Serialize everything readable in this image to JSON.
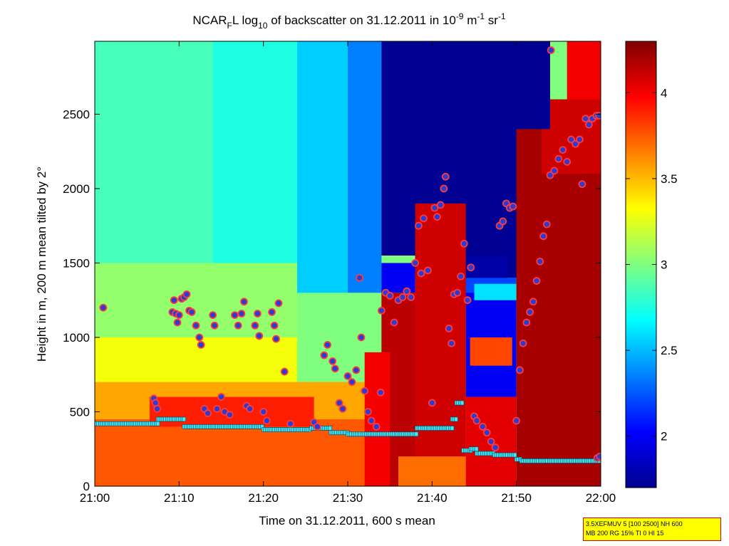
{
  "chart_data": {
    "type": "heatmap",
    "title": {
      "prefix": "NCAR",
      "prefix_sub": "F",
      "mid1": "L log",
      "log_sub": "10",
      "mid2": " of backscatter on 31.12.2011 in 10",
      "exp1": "-9",
      "mid3": " m",
      "exp2": "-1",
      "mid4": " sr",
      "exp3": "-1"
    },
    "xlabel": "Time on 31.12.2011, 600 s mean",
    "ylabel": "Height in m, 200 m mean tilted by 2°",
    "x_ticks": [
      "21:00",
      "21:10",
      "21:20",
      "21:30",
      "21:40",
      "21:50",
      "22:00"
    ],
    "x_range_minutes": [
      0,
      60
    ],
    "y_ticks": [
      0,
      500,
      1000,
      1500,
      2000,
      2500
    ],
    "ylim": [
      0,
      2990
    ],
    "colorbar": {
      "ticks": [
        "2",
        "2.5",
        "3",
        "3.5",
        "4"
      ],
      "range": [
        1.7,
        4.3
      ],
      "colormap": "jet"
    },
    "colors": {
      "marker_fill": "#2a3bd6",
      "marker_edge": "#ff3a3a",
      "boundary_line": "#44e6f0",
      "boundary_edge": "#0a4a6a"
    },
    "regions": [
      {
        "t": [
          0,
          60
        ],
        "h": [
          0,
          2990
        ],
        "v": 3.0
      },
      {
        "t": [
          0,
          14
        ],
        "h": [
          1500,
          2990
        ],
        "v": 2.85
      },
      {
        "t": [
          14,
          24
        ],
        "h": [
          1500,
          2990
        ],
        "v": 2.75
      },
      {
        "t": [
          24,
          30
        ],
        "h": [
          1300,
          2990
        ],
        "v": 2.55
      },
      {
        "t": [
          30,
          34
        ],
        "h": [
          1300,
          2990
        ],
        "v": 2.35
      },
      {
        "t": [
          0,
          24
        ],
        "h": [
          1000,
          1500
        ],
        "v": 3.05
      },
      {
        "t": [
          0,
          24
        ],
        "h": [
          700,
          1000
        ],
        "v": 3.3
      },
      {
        "t": [
          0,
          34
        ],
        "h": [
          450,
          700
        ],
        "v": 3.55
      },
      {
        "t": [
          0,
          34
        ],
        "h": [
          0,
          450
        ],
        "v": 3.75
      },
      {
        "t": [
          6.5,
          26
        ],
        "h": [
          400,
          600
        ],
        "v": 3.9
      },
      {
        "t": [
          34,
          52
        ],
        "h": [
          1550,
          2990
        ],
        "v": 1.75
      },
      {
        "t": [
          49,
          54
        ],
        "h": [
          2000,
          2990
        ],
        "v": 1.75
      },
      {
        "t": [
          38,
          52
        ],
        "h": [
          1400,
          2990
        ],
        "v": 1.75
      },
      {
        "t": [
          34,
          38
        ],
        "h": [
          1300,
          1500
        ],
        "v": 2.0
      },
      {
        "t": [
          44,
          49
        ],
        "h": [
          1250,
          1550
        ],
        "v": 1.8
      },
      {
        "t": [
          44,
          50
        ],
        "h": [
          600,
          1300
        ],
        "v": 2.0
      },
      {
        "t": [
          44,
          50
        ],
        "h": [
          1300,
          1400
        ],
        "v": 2.2
      },
      {
        "t": [
          45,
          50
        ],
        "h": [
          1250,
          1360
        ],
        "v": 2.6
      },
      {
        "t": [
          44.5,
          49.5
        ],
        "h": [
          810,
          1000
        ],
        "v": 3.8
      },
      {
        "t": [
          34,
          44
        ],
        "h": [
          0,
          1300
        ],
        "v": 4.15
      },
      {
        "t": [
          32,
          35
        ],
        "h": [
          0,
          900
        ],
        "v": 4.0
      },
      {
        "t": [
          38,
          44
        ],
        "h": [
          0,
          1900
        ],
        "v": 4.1
      },
      {
        "t": [
          44,
          50
        ],
        "h": [
          0,
          600
        ],
        "v": 4.05
      },
      {
        "t": [
          50,
          60
        ],
        "h": [
          0,
          2400
        ],
        "v": 4.2
      },
      {
        "t": [
          53,
          60
        ],
        "h": [
          2100,
          2600
        ],
        "v": 4.1
      },
      {
        "t": [
          56,
          60
        ],
        "h": [
          2600,
          2990
        ],
        "v": 4.0
      },
      {
        "t": [
          36,
          44
        ],
        "h": [
          0,
          200
        ],
        "v": 3.7
      },
      {
        "t": [
          52.5,
          54
        ],
        "h": [
          2400,
          2990
        ],
        "v": 1.75
      }
    ],
    "cloud_points": [
      [
        1,
        1200
      ],
      [
        7,
        590
      ],
      [
        7.2,
        560
      ],
      [
        7.4,
        520
      ],
      [
        9.2,
        1170
      ],
      [
        9.4,
        1250
      ],
      [
        9.6,
        1160
      ],
      [
        9.8,
        1100
      ],
      [
        10,
        1150
      ],
      [
        10.3,
        1260
      ],
      [
        10.6,
        1270
      ],
      [
        10.9,
        1290
      ],
      [
        11.2,
        1180
      ],
      [
        11.5,
        1170
      ],
      [
        12,
        1080
      ],
      [
        12.4,
        1000
      ],
      [
        12.6,
        950
      ],
      [
        13,
        520
      ],
      [
        13.4,
        490
      ],
      [
        14,
        1150
      ],
      [
        14.2,
        1080
      ],
      [
        14.5,
        520
      ],
      [
        15,
        600
      ],
      [
        15.4,
        500
      ],
      [
        16,
        480
      ],
      [
        16.6,
        1150
      ],
      [
        17,
        1080
      ],
      [
        17.4,
        1160
      ],
      [
        17.7,
        1240
      ],
      [
        18,
        540
      ],
      [
        18.4,
        520
      ],
      [
        19,
        1080
      ],
      [
        19.3,
        1160
      ],
      [
        19.5,
        1010
      ],
      [
        20,
        500
      ],
      [
        20.4,
        440
      ],
      [
        21,
        1170
      ],
      [
        21.3,
        1080
      ],
      [
        21.5,
        990
      ],
      [
        21.8,
        1230
      ],
      [
        22.5,
        770
      ],
      [
        23.2,
        420
      ],
      [
        26,
        430
      ],
      [
        26.4,
        400
      ],
      [
        27.2,
        880
      ],
      [
        27.6,
        950
      ],
      [
        28.2,
        840
      ],
      [
        28.5,
        790
      ],
      [
        29,
        560
      ],
      [
        29.4,
        520
      ],
      [
        30,
        740
      ],
      [
        30.5,
        700
      ],
      [
        31,
        780
      ],
      [
        31.4,
        1400
      ],
      [
        31.6,
        1000
      ],
      [
        32,
        640
      ],
      [
        32.4,
        500
      ],
      [
        32.8,
        440
      ],
      [
        33.4,
        400
      ],
      [
        33.9,
        630
      ],
      [
        34,
        1180
      ],
      [
        34.5,
        1300
      ],
      [
        35,
        1280
      ],
      [
        35.5,
        1100
      ],
      [
        36,
        1250
      ],
      [
        36.5,
        1270
      ],
      [
        37,
        1310
      ],
      [
        37.5,
        1270
      ],
      [
        38,
        1500
      ],
      [
        38.4,
        1750
      ],
      [
        38.7,
        1430
      ],
      [
        39,
        1800
      ],
      [
        39.5,
        1450
      ],
      [
        40,
        560
      ],
      [
        40.3,
        1870
      ],
      [
        40.6,
        1810
      ],
      [
        41,
        1890
      ],
      [
        41.4,
        2000
      ],
      [
        41.6,
        2080
      ],
      [
        42,
        1060
      ],
      [
        42.3,
        960
      ],
      [
        42.6,
        1290
      ],
      [
        43,
        1300
      ],
      [
        43.4,
        1410
      ],
      [
        43.8,
        1630
      ],
      [
        44.2,
        1250
      ],
      [
        44.6,
        1470
      ],
      [
        45,
        470
      ],
      [
        45.3,
        440
      ],
      [
        46,
        400
      ],
      [
        46.5,
        360
      ],
      [
        47,
        300
      ],
      [
        47.5,
        260
      ],
      [
        48,
        1750
      ],
      [
        48.4,
        1780
      ],
      [
        48.8,
        1900
      ],
      [
        49.2,
        1870
      ],
      [
        49.6,
        1880
      ],
      [
        50,
        440
      ],
      [
        50.4,
        780
      ],
      [
        50.8,
        960
      ],
      [
        51.2,
        1100
      ],
      [
        51.6,
        1170
      ],
      [
        52,
        1240
      ],
      [
        52.4,
        1380
      ],
      [
        52.8,
        1510
      ],
      [
        53.2,
        1680
      ],
      [
        53.6,
        1760
      ],
      [
        54,
        2090
      ],
      [
        54.5,
        2120
      ],
      [
        55,
        2200
      ],
      [
        55.5,
        2260
      ],
      [
        56,
        2180
      ],
      [
        56.5,
        2330
      ],
      [
        57,
        2300
      ],
      [
        57.5,
        2330
      ],
      [
        57.8,
        2030
      ],
      [
        58.2,
        2470
      ],
      [
        58.6,
        2430
      ],
      [
        59,
        2470
      ],
      [
        59.5,
        2490
      ],
      [
        59.8,
        2490
      ],
      [
        59.6,
        190
      ],
      [
        59.9,
        200
      ],
      [
        54.1,
        2930
      ]
    ],
    "boundary_layer": [
      {
        "t": [
          0,
          7.5
        ],
        "h": 420
      },
      {
        "t": [
          7.5,
          10.6
        ],
        "h": 450
      },
      {
        "t": [
          10.6,
          20
        ],
        "h": 400
      },
      {
        "t": [
          20,
          25.7
        ],
        "h": 380
      },
      {
        "t": [
          25.7,
          28
        ],
        "h": 390
      },
      {
        "t": [
          28,
          30
        ],
        "h": 360
      },
      {
        "t": [
          30,
          38.2
        ],
        "h": 350
      },
      {
        "t": [
          38.2,
          42.4
        ],
        "h": 390
      },
      {
        "t": [
          42.4,
          42.9
        ],
        "h": 450
      },
      {
        "t": [
          42.9,
          43.7
        ],
        "h": 560
      },
      {
        "t": [
          43.7,
          44.6
        ],
        "h": 240
      },
      {
        "t": [
          44.6,
          45.3
        ],
        "h": 250
      },
      {
        "t": [
          45.3,
          47.4
        ],
        "h": 220
      },
      {
        "t": [
          47.4,
          50
        ],
        "h": 210
      },
      {
        "t": [
          50,
          50.6
        ],
        "h": 180
      },
      {
        "t": [
          50.6,
          60
        ],
        "h": 170
      }
    ]
  },
  "info_box": {
    "line1": "3.5XEFMUV 5 [100 2500] NH 600",
    "line2": "MB 200 RG 15% TI 0 HI 15"
  }
}
